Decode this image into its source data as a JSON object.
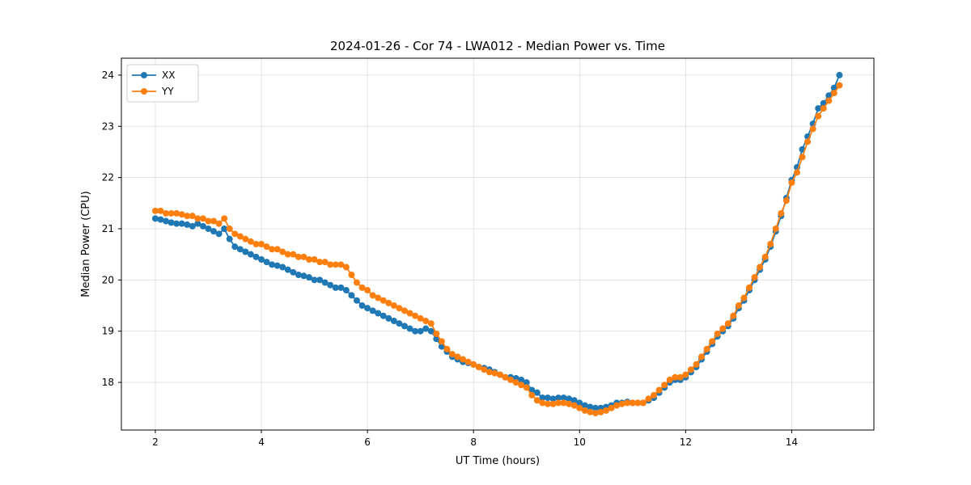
{
  "chart_data": {
    "type": "line",
    "title": "2024-01-26 - Cor 74 - LWA012 - Median Power vs. Time",
    "xlabel": "UT Time (hours)",
    "ylabel": "Median Power (CPU)",
    "xlim": [
      1.36,
      15.55
    ],
    "ylim": [
      17.07,
      24.33
    ],
    "x_ticks": [
      2,
      4,
      6,
      8,
      10,
      12,
      14
    ],
    "y_ticks": [
      18,
      19,
      20,
      21,
      22,
      23,
      24
    ],
    "grid": true,
    "legend_position": "upper left",
    "x": [
      2.0,
      2.1,
      2.2,
      2.3,
      2.4,
      2.5,
      2.6,
      2.7,
      2.8,
      2.9,
      3.0,
      3.1,
      3.2,
      3.3,
      3.4,
      3.5,
      3.6,
      3.7,
      3.8,
      3.9,
      4.0,
      4.1,
      4.2,
      4.3,
      4.4,
      4.5,
      4.6,
      4.7,
      4.8,
      4.9,
      5.0,
      5.1,
      5.2,
      5.3,
      5.4,
      5.5,
      5.6,
      5.7,
      5.8,
      5.9,
      6.0,
      6.1,
      6.2,
      6.3,
      6.4,
      6.5,
      6.6,
      6.7,
      6.8,
      6.9,
      7.0,
      7.1,
      7.2,
      7.3,
      7.4,
      7.5,
      7.6,
      7.7,
      7.8,
      7.9,
      8.0,
      8.1,
      8.2,
      8.3,
      8.4,
      8.5,
      8.6,
      8.7,
      8.8,
      8.9,
      9.0,
      9.1,
      9.2,
      9.3,
      9.4,
      9.5,
      9.6,
      9.7,
      9.8,
      9.9,
      10.0,
      10.1,
      10.2,
      10.3,
      10.4,
      10.5,
      10.6,
      10.7,
      10.8,
      10.9,
      11.0,
      11.1,
      11.2,
      11.3,
      11.4,
      11.5,
      11.6,
      11.7,
      11.8,
      11.9,
      12.0,
      12.1,
      12.2,
      12.3,
      12.4,
      12.5,
      12.6,
      12.7,
      12.8,
      12.9,
      13.0,
      13.1,
      13.2,
      13.3,
      13.4,
      13.5,
      13.6,
      13.7,
      13.8,
      13.9,
      14.0,
      14.1,
      14.2,
      14.3,
      14.4,
      14.5,
      14.6,
      14.7,
      14.8,
      14.9
    ],
    "series": [
      {
        "name": "XX",
        "color": "#1f77b4",
        "marker": "circle",
        "values": [
          21.2,
          21.18,
          21.15,
          21.12,
          21.1,
          21.1,
          21.08,
          21.05,
          21.1,
          21.05,
          21.0,
          20.95,
          20.9,
          21.0,
          20.8,
          20.65,
          20.6,
          20.55,
          20.5,
          20.45,
          20.4,
          20.35,
          20.3,
          20.28,
          20.25,
          20.2,
          20.15,
          20.1,
          20.08,
          20.05,
          20.0,
          20.0,
          19.95,
          19.9,
          19.85,
          19.85,
          19.8,
          19.7,
          19.6,
          19.5,
          19.45,
          19.4,
          19.35,
          19.3,
          19.25,
          19.2,
          19.15,
          19.1,
          19.05,
          19.0,
          19.0,
          19.05,
          19.0,
          18.85,
          18.7,
          18.6,
          18.5,
          18.45,
          18.4,
          18.38,
          18.35,
          18.3,
          18.28,
          18.25,
          18.2,
          18.15,
          18.1,
          18.1,
          18.08,
          18.05,
          18.0,
          17.85,
          17.8,
          17.7,
          17.7,
          17.68,
          17.7,
          17.7,
          17.68,
          17.65,
          17.6,
          17.55,
          17.52,
          17.5,
          17.5,
          17.52,
          17.55,
          17.6,
          17.6,
          17.62,
          17.6,
          17.6,
          17.6,
          17.65,
          17.7,
          17.8,
          17.9,
          18.0,
          18.05,
          18.05,
          18.1,
          18.2,
          18.3,
          18.45,
          18.6,
          18.75,
          18.9,
          19.0,
          19.1,
          19.25,
          19.45,
          19.6,
          19.8,
          20.0,
          20.2,
          20.4,
          20.65,
          20.95,
          21.25,
          21.6,
          21.95,
          22.2,
          22.55,
          22.8,
          23.05,
          23.35,
          23.45,
          23.6,
          23.75,
          24.0
        ]
      },
      {
        "name": "YY",
        "color": "#ff7f0e",
        "marker": "circle",
        "values": [
          21.35,
          21.35,
          21.3,
          21.3,
          21.3,
          21.28,
          21.25,
          21.25,
          21.2,
          21.2,
          21.15,
          21.15,
          21.1,
          21.2,
          21.0,
          20.9,
          20.85,
          20.8,
          20.75,
          20.7,
          20.7,
          20.65,
          20.6,
          20.6,
          20.55,
          20.5,
          20.5,
          20.45,
          20.45,
          20.4,
          20.4,
          20.35,
          20.35,
          20.3,
          20.3,
          20.3,
          20.25,
          20.1,
          19.95,
          19.85,
          19.8,
          19.7,
          19.65,
          19.6,
          19.55,
          19.5,
          19.45,
          19.4,
          19.35,
          19.3,
          19.25,
          19.2,
          19.15,
          18.95,
          18.8,
          18.65,
          18.55,
          18.5,
          18.45,
          18.4,
          18.35,
          18.3,
          18.25,
          18.2,
          18.18,
          18.15,
          18.1,
          18.05,
          18.0,
          17.95,
          17.9,
          17.75,
          17.65,
          17.6,
          17.58,
          17.58,
          17.6,
          17.6,
          17.58,
          17.55,
          17.5,
          17.45,
          17.42,
          17.4,
          17.42,
          17.45,
          17.5,
          17.55,
          17.58,
          17.6,
          17.6,
          17.6,
          17.6,
          17.68,
          17.75,
          17.85,
          17.95,
          18.05,
          18.1,
          18.1,
          18.15,
          18.25,
          18.35,
          18.5,
          18.65,
          18.8,
          18.95,
          19.05,
          19.15,
          19.3,
          19.5,
          19.65,
          19.85,
          20.05,
          20.25,
          20.45,
          20.7,
          21.0,
          21.3,
          21.55,
          21.9,
          22.1,
          22.4,
          22.7,
          22.95,
          23.2,
          23.35,
          23.5,
          23.65,
          23.8
        ]
      }
    ],
    "colors": {
      "series_xx": "#1f77b4",
      "series_yy": "#ff7f0e",
      "grid": "#dcdcdc",
      "frame": "#000000",
      "legend_border": "#cccccc"
    }
  }
}
